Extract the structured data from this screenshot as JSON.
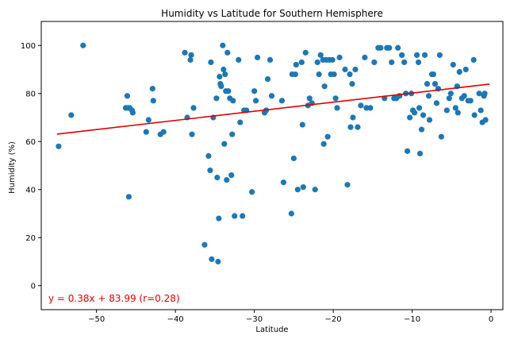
{
  "chart_data": {
    "type": "scatter",
    "title": "Humidity vs Latitude for Southern Hemisphere",
    "xlabel": "Latitude",
    "ylabel": "Humidity (%)",
    "xlim": [
      -57,
      1.5
    ],
    "ylim": [
      -10,
      110
    ],
    "x_ticks": [
      -50,
      -40,
      -30,
      -20,
      -10,
      0
    ],
    "y_ticks": [
      0,
      20,
      40,
      60,
      80,
      100
    ],
    "grid": false,
    "legend": "none",
    "colors": {
      "points": "#1f77b4",
      "regression": "#e00000"
    },
    "regression": {
      "slope": 0.38,
      "intercept": 83.99,
      "x_range": [
        -55,
        -0.2
      ],
      "label": "y = 0.38x + 83.99 (r=0.28)"
    },
    "points": [
      [
        -54.8,
        58
      ],
      [
        -53.2,
        71
      ],
      [
        -51.7,
        100
      ],
      [
        -46.3,
        74
      ],
      [
        -46.1,
        79
      ],
      [
        -46.0,
        74
      ],
      [
        -45.9,
        37
      ],
      [
        -45.8,
        74
      ],
      [
        -45.5,
        73
      ],
      [
        -45.4,
        72
      ],
      [
        -43.7,
        64
      ],
      [
        -43.4,
        69
      ],
      [
        -42.9,
        82
      ],
      [
        -42.8,
        77
      ],
      [
        -41.9,
        63
      ],
      [
        -41.5,
        64
      ],
      [
        -38.8,
        97
      ],
      [
        -38.5,
        70
      ],
      [
        -38.1,
        94
      ],
      [
        -38.0,
        96
      ],
      [
        -37.9,
        63
      ],
      [
        -37.7,
        74
      ],
      [
        -36.3,
        17
      ],
      [
        -35.8,
        54
      ],
      [
        -35.6,
        48
      ],
      [
        -35.5,
        93
      ],
      [
        -35.4,
        11
      ],
      [
        -35.2,
        70
      ],
      [
        -34.8,
        78
      ],
      [
        -34.7,
        45
      ],
      [
        -34.6,
        10
      ],
      [
        -34.5,
        28
      ],
      [
        -34.4,
        87
      ],
      [
        -34.3,
        84
      ],
      [
        -34.2,
        83
      ],
      [
        -34.0,
        100
      ],
      [
        -33.9,
        90
      ],
      [
        -33.8,
        59
      ],
      [
        -33.7,
        88
      ],
      [
        -33.6,
        81
      ],
      [
        -33.5,
        44
      ],
      [
        -33.4,
        97
      ],
      [
        -33.3,
        81
      ],
      [
        -33.1,
        78
      ],
      [
        -32.9,
        46
      ],
      [
        -32.8,
        63
      ],
      [
        -32.7,
        77
      ],
      [
        -32.5,
        29
      ],
      [
        -32.0,
        94
      ],
      [
        -31.8,
        68
      ],
      [
        -31.5,
        29
      ],
      [
        -31.3,
        73
      ],
      [
        -31.0,
        73
      ],
      [
        -30.3,
        39
      ],
      [
        -30.0,
        81
      ],
      [
        -29.8,
        77
      ],
      [
        -29.6,
        95
      ],
      [
        -28.7,
        72
      ],
      [
        -28.5,
        73
      ],
      [
        -28.3,
        86
      ],
      [
        -28.0,
        94
      ],
      [
        -27.8,
        79
      ],
      [
        -26.5,
        77
      ],
      [
        -26.3,
        43
      ],
      [
        -25.3,
        30
      ],
      [
        -25.2,
        88
      ],
      [
        -25.0,
        53
      ],
      [
        -24.8,
        88
      ],
      [
        -24.7,
        92
      ],
      [
        -24.5,
        40
      ],
      [
        -24.0,
        93
      ],
      [
        -23.9,
        67
      ],
      [
        -23.8,
        41
      ],
      [
        -23.5,
        97
      ],
      [
        -23.2,
        75
      ],
      [
        -23.0,
        78
      ],
      [
        -22.7,
        76
      ],
      [
        -22.3,
        40
      ],
      [
        -22.0,
        93
      ],
      [
        -21.8,
        88
      ],
      [
        -21.6,
        96
      ],
      [
        -21.3,
        94
      ],
      [
        -21.2,
        59
      ],
      [
        -21.1,
        83
      ],
      [
        -20.9,
        94
      ],
      [
        -20.7,
        62
      ],
      [
        -20.5,
        94
      ],
      [
        -20.3,
        88
      ],
      [
        -20.1,
        94
      ],
      [
        -19.9,
        88
      ],
      [
        -19.7,
        78
      ],
      [
        -19.5,
        74
      ],
      [
        -19.2,
        95
      ],
      [
        -18.5,
        90
      ],
      [
        -18.2,
        42
      ],
      [
        -17.9,
        88
      ],
      [
        -17.8,
        66
      ],
      [
        -17.6,
        84
      ],
      [
        -17.5,
        70
      ],
      [
        -17.2,
        90
      ],
      [
        -16.9,
        66
      ],
      [
        -16.5,
        75
      ],
      [
        -16.0,
        95
      ],
      [
        -15.8,
        74
      ],
      [
        -15.3,
        74
      ],
      [
        -14.8,
        93
      ],
      [
        -14.3,
        99
      ],
      [
        -14.0,
        99
      ],
      [
        -13.5,
        78
      ],
      [
        -13.2,
        99
      ],
      [
        -12.9,
        99
      ],
      [
        -12.6,
        93
      ],
      [
        -12.3,
        78
      ],
      [
        -12.0,
        78
      ],
      [
        -11.8,
        99
      ],
      [
        -11.6,
        79
      ],
      [
        -11.3,
        96
      ],
      [
        -11.0,
        93
      ],
      [
        -10.8,
        80
      ],
      [
        -10.6,
        56
      ],
      [
        -10.3,
        70
      ],
      [
        -10.1,
        80
      ],
      [
        -9.9,
        73
      ],
      [
        -9.7,
        72
      ],
      [
        -9.4,
        96
      ],
      [
        -9.2,
        93
      ],
      [
        -9.1,
        74
      ],
      [
        -9.0,
        55
      ],
      [
        -8.8,
        65
      ],
      [
        -8.6,
        71
      ],
      [
        -8.4,
        96
      ],
      [
        -8.1,
        84
      ],
      [
        -7.9,
        79
      ],
      [
        -7.8,
        69
      ],
      [
        -7.5,
        88
      ],
      [
        -7.3,
        88
      ],
      [
        -7.1,
        84
      ],
      [
        -6.9,
        76
      ],
      [
        -6.7,
        82
      ],
      [
        -6.5,
        96
      ],
      [
        -6.3,
        62
      ],
      [
        -5.6,
        73
      ],
      [
        -5.3,
        78
      ],
      [
        -5.1,
        80
      ],
      [
        -4.8,
        92
      ],
      [
        -4.5,
        74
      ],
      [
        -4.3,
        83
      ],
      [
        -4.2,
        72
      ],
      [
        -4.0,
        89
      ],
      [
        -3.7,
        78
      ],
      [
        -3.4,
        79
      ],
      [
        -3.2,
        90
      ],
      [
        -2.9,
        77
      ],
      [
        -2.6,
        77
      ],
      [
        -2.2,
        94
      ],
      [
        -2.1,
        71
      ],
      [
        -1.5,
        80
      ],
      [
        -1.3,
        73
      ],
      [
        -1.1,
        68
      ],
      [
        -0.9,
        79
      ],
      [
        -0.8,
        80
      ],
      [
        -0.7,
        69
      ]
    ]
  }
}
